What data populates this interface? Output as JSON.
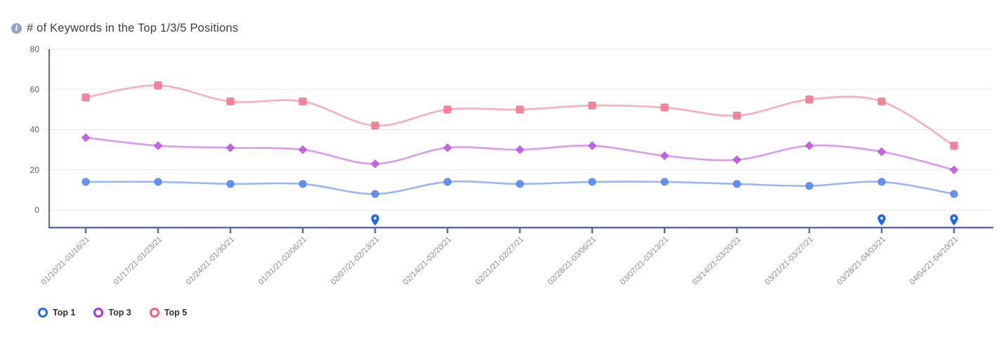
{
  "header": {
    "info_glyph": "i",
    "title": "# of Keywords in the Top 1/3/5 Positions"
  },
  "chart_data": {
    "type": "line",
    "title": "# of Keywords in the Top 1/3/5 Positions",
    "categories": [
      "01/10/21-01/16/21",
      "01/17/21-01/23/21",
      "01/24/21-01/30/21",
      "01/31/21-02/06/21",
      "02/07/21-02/13/21",
      "02/14/21-02/20/21",
      "02/21/21-02/27/21",
      "02/28/21-03/06/21",
      "03/07/21-03/13/21",
      "03/14/21-03/20/21",
      "03/21/21-03/27/21",
      "03/28/21-04/03/21",
      "04/04/21-04/10/21"
    ],
    "series": [
      {
        "name": "Top 1",
        "marker": "circle",
        "color": "#5282ee",
        "legend_color": "#1f6fe9",
        "values": [
          14,
          14,
          13,
          13,
          8,
          14,
          13,
          14,
          14,
          13,
          12,
          14,
          8
        ]
      },
      {
        "name": "Top 3",
        "marker": "diamond",
        "color": "#bb52e0",
        "legend_color": "#ab30e3",
        "values": [
          36,
          32,
          31,
          30,
          23,
          31,
          30,
          32,
          27,
          25,
          32,
          29,
          20
        ]
      },
      {
        "name": "Top 5",
        "marker": "square",
        "color": "#f2738e",
        "legend_color": "#f55f7d",
        "values": [
          56,
          62,
          54,
          54,
          42,
          50,
          50,
          52,
          51,
          47,
          55,
          54,
          32
        ]
      }
    ],
    "ylim": [
      0,
      80
    ],
    "yticks": [
      0,
      20,
      40,
      60,
      80
    ],
    "grid": true,
    "legend_position": "bottom-left",
    "annotations": {
      "pin_indices": [
        4,
        11,
        12
      ],
      "pin_icon": "map-pin",
      "pin_color": "#2168e8"
    },
    "colors": {
      "axis": "#5b69a6",
      "grid": "#e7e7e7",
      "y_label": "#5c5c5c",
      "x_label": "#8d8d8d"
    }
  }
}
